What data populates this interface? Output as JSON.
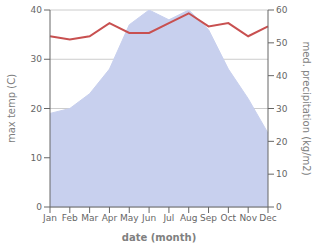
{
  "chart_data": {
    "type": "line",
    "xlabel": "date (month)",
    "ylabel": "max temp (C)",
    "y2label": "med. precipitation (kg/m2)",
    "categories": [
      "Jan",
      "Feb",
      "Mar",
      "Apr",
      "May",
      "Jun",
      "Jul",
      "Aug",
      "Sep",
      "Oct",
      "Nov",
      "Dec"
    ],
    "series": [
      {
        "type": "area",
        "color": "#c8d0ee",
        "values": [
          19,
          20,
          23,
          28,
          37,
          40,
          38,
          40,
          36,
          28,
          22,
          15
        ]
      },
      {
        "type": "line",
        "color": "#c85050",
        "axis": "y2",
        "values": [
          52,
          51,
          52,
          56,
          53,
          53,
          56,
          59,
          55,
          56,
          52,
          55
        ]
      }
    ],
    "ylim": [
      0,
      40
    ],
    "yticks": [
      0,
      10,
      20,
      30,
      40
    ],
    "y2lim": [
      0,
      60
    ],
    "y2ticks": [
      0,
      10,
      20,
      30,
      40,
      50,
      60
    ],
    "grid": true
  }
}
